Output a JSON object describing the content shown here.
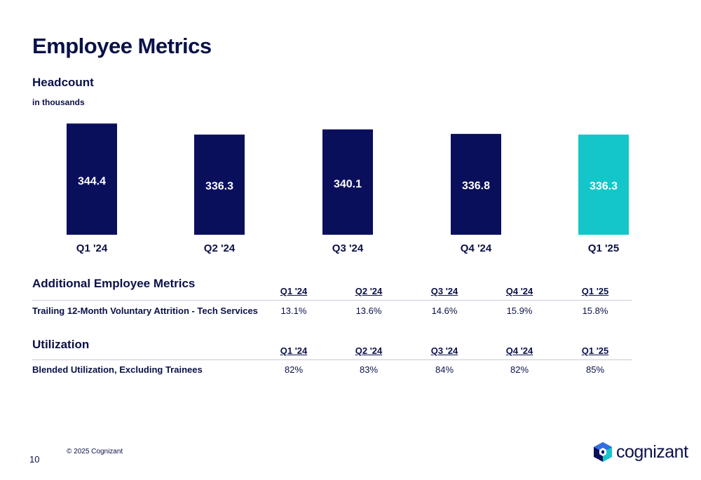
{
  "page": {
    "title": "Employee Metrics",
    "copyright": "© 2025 Cognizant",
    "page_number": "10",
    "logo_text": "cognizant"
  },
  "colors": {
    "bar_primary": "#0a0f5c",
    "bar_highlight": "#14c6c9",
    "text": "#0a1147"
  },
  "chart_data": {
    "type": "bar",
    "title": "Headcount",
    "subtitle": "in thousands",
    "categories": [
      "Q1 '24",
      "Q2 '24",
      "Q3 '24",
      "Q4 '24",
      "Q1 '25"
    ],
    "values": [
      344.4,
      336.3,
      340.1,
      336.8,
      336.3
    ],
    "value_labels": [
      "344.4",
      "336.3",
      "340.1",
      "336.8",
      "336.3"
    ],
    "highlight_index": 4,
    "grid": false,
    "legend": "none"
  },
  "attrition": {
    "title": "Additional Employee Metrics",
    "headers": [
      "Q1 '24",
      "Q2 '24",
      "Q3 '24",
      "Q4 '24",
      "Q1 '25"
    ],
    "row_label": "Trailing 12-Month Voluntary Attrition - Tech Services",
    "values": [
      "13.1%",
      "13.6%",
      "14.6%",
      "15.9%",
      "15.8%"
    ]
  },
  "utilization": {
    "title": "Utilization",
    "headers": [
      "Q1 '24",
      "Q2 '24",
      "Q3 '24",
      "Q4 '24",
      "Q1 '25"
    ],
    "row_label": "Blended Utilization, Excluding Trainees",
    "values": [
      "82%",
      "83%",
      "84%",
      "82%",
      "85%"
    ]
  }
}
